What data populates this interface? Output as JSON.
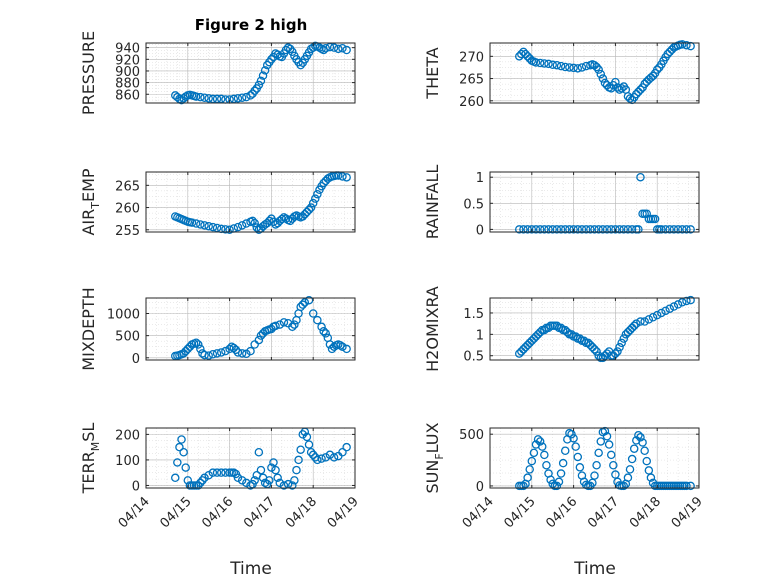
{
  "figure": {
    "title": "Figure 2 high",
    "x_axis_label": "Time"
  },
  "chart_data": [
    {
      "type": "scatter",
      "ylabel": "PRESSURE",
      "xlim": [
        0,
        5
      ],
      "xticks": [
        0,
        1,
        2,
        3,
        4,
        5
      ],
      "ylim": [
        845,
        948
      ],
      "yticks": [
        860,
        880,
        900,
        920,
        940
      ],
      "marker_color": "#0072BD",
      "grid": true,
      "x": [
        0.7,
        0.75,
        0.8,
        0.85,
        0.9,
        0.95,
        1.0,
        1.05,
        1.1,
        1.15,
        1.2,
        1.3,
        1.4,
        1.5,
        1.6,
        1.7,
        1.8,
        1.9,
        2.0,
        2.1,
        2.2,
        2.3,
        2.4,
        2.5,
        2.55,
        2.6,
        2.65,
        2.7,
        2.75,
        2.8,
        2.85,
        2.9,
        2.95,
        3.0,
        3.05,
        3.1,
        3.15,
        3.2,
        3.25,
        3.3,
        3.35,
        3.4,
        3.45,
        3.5,
        3.55,
        3.6,
        3.65,
        3.7,
        3.75,
        3.8,
        3.85,
        3.9,
        3.95,
        4.0,
        4.05,
        4.1,
        4.15,
        4.2,
        4.25,
        4.3,
        4.4,
        4.5,
        4.6,
        4.7,
        4.8
      ],
      "y": [
        858,
        855,
        852,
        850,
        853,
        856,
        858,
        859,
        858,
        857,
        856,
        855,
        854,
        853,
        852,
        852,
        852,
        851,
        851,
        852,
        853,
        854,
        855,
        858,
        861,
        866,
        870,
        876,
        883,
        892,
        901,
        910,
        915,
        920,
        924,
        930,
        928,
        925,
        924,
        930,
        936,
        940,
        938,
        933,
        926,
        920,
        915,
        910,
        914,
        920,
        926,
        932,
        938,
        940,
        943,
        942,
        940,
        938,
        936,
        939,
        941,
        940,
        938,
        939,
        936
      ]
    },
    {
      "type": "scatter",
      "ylabel": "THETA",
      "xlim": [
        0,
        5
      ],
      "xticks": [
        0,
        1,
        2,
        3,
        4,
        5
      ],
      "ylim": [
        259.5,
        273
      ],
      "yticks": [
        260,
        265,
        270
      ],
      "marker_color": "#0072BD",
      "grid": true,
      "x": [
        0.7,
        0.75,
        0.8,
        0.85,
        0.9,
        0.95,
        1.0,
        1.05,
        1.1,
        1.2,
        1.3,
        1.4,
        1.5,
        1.6,
        1.7,
        1.8,
        1.9,
        2.0,
        2.1,
        2.2,
        2.3,
        2.4,
        2.45,
        2.5,
        2.55,
        2.6,
        2.65,
        2.7,
        2.75,
        2.8,
        2.85,
        2.9,
        2.95,
        3.0,
        3.05,
        3.1,
        3.15,
        3.2,
        3.25,
        3.3,
        3.35,
        3.4,
        3.45,
        3.5,
        3.55,
        3.6,
        3.65,
        3.7,
        3.75,
        3.8,
        3.85,
        3.9,
        3.95,
        4.0,
        4.05,
        4.1,
        4.15,
        4.2,
        4.25,
        4.3,
        4.35,
        4.4,
        4.45,
        4.5,
        4.55,
        4.6,
        4.7,
        4.8
      ],
      "y": [
        270,
        270.5,
        271,
        270.5,
        270,
        269.5,
        269,
        268.8,
        268.6,
        268.5,
        268.4,
        268.3,
        268.1,
        268,
        267.8,
        267.6,
        267.5,
        267.4,
        267.3,
        267.5,
        267.8,
        268,
        268.2,
        268,
        267.6,
        267,
        266,
        265,
        264,
        263.5,
        263,
        262.8,
        263.5,
        264.2,
        263,
        262.5,
        262.8,
        263.2,
        262.5,
        261,
        260.5,
        260.2,
        260.8,
        261.5,
        262,
        262.5,
        263,
        263.8,
        264.3,
        264.8,
        265.2,
        265.6,
        266.2,
        267,
        267.5,
        268.2,
        269,
        269.8,
        270.5,
        271,
        271.5,
        272,
        272.2,
        272.4,
        272.6,
        272.7,
        272.5,
        272.3
      ]
    },
    {
      "type": "scatter",
      "ylabel": "AIR_TEMP",
      "xlim": [
        0,
        5
      ],
      "xticks": [
        0,
        1,
        2,
        3,
        4,
        5
      ],
      "ylim": [
        254.5,
        268
      ],
      "yticks": [
        255,
        260,
        265
      ],
      "marker_color": "#0072BD",
      "grid": true,
      "x": [
        0.7,
        0.75,
        0.8,
        0.85,
        0.9,
        0.95,
        1.0,
        1.05,
        1.1,
        1.2,
        1.3,
        1.4,
        1.5,
        1.6,
        1.7,
        1.8,
        1.9,
        2.0,
        2.1,
        2.2,
        2.3,
        2.4,
        2.5,
        2.55,
        2.6,
        2.65,
        2.7,
        2.75,
        2.8,
        2.85,
        2.9,
        2.95,
        3.0,
        3.05,
        3.1,
        3.15,
        3.2,
        3.25,
        3.3,
        3.35,
        3.4,
        3.45,
        3.5,
        3.55,
        3.6,
        3.65,
        3.7,
        3.75,
        3.8,
        3.85,
        3.9,
        3.95,
        4.0,
        4.05,
        4.1,
        4.15,
        4.2,
        4.25,
        4.3,
        4.35,
        4.4,
        4.45,
        4.5,
        4.55,
        4.6,
        4.7,
        4.8
      ],
      "y": [
        258,
        257.8,
        257.6,
        257.4,
        257.2,
        257,
        256.8,
        256.7,
        256.6,
        256.4,
        256.2,
        256,
        255.8,
        255.6,
        255.4,
        255.2,
        255.1,
        255,
        255.3,
        255.6,
        256,
        256.4,
        256.8,
        257,
        256.5,
        255.5,
        255,
        255.3,
        255.8,
        256.2,
        256.5,
        257,
        257.5,
        256.8,
        256.2,
        256.5,
        257,
        257.4,
        257.8,
        257.5,
        257.2,
        257,
        257.5,
        258,
        258.2,
        258,
        257.8,
        258,
        258.5,
        259,
        259.5,
        260,
        261,
        262,
        263,
        264,
        264.8,
        265.5,
        266,
        266.5,
        266.8,
        267,
        267.1,
        267.2,
        267.2,
        267,
        266.8
      ]
    },
    {
      "type": "scatter",
      "ylabel": "RAINFALL",
      "xlim": [
        0,
        5
      ],
      "xticks": [
        0,
        1,
        2,
        3,
        4,
        5
      ],
      "ylim": [
        -0.05,
        1.1
      ],
      "yticks": [
        0,
        0.5,
        1
      ],
      "marker_color": "#0072BD",
      "grid": true,
      "x": [
        0.7,
        0.8,
        0.9,
        1.0,
        1.1,
        1.2,
        1.3,
        1.4,
        1.5,
        1.6,
        1.7,
        1.8,
        1.9,
        2.0,
        2.1,
        2.2,
        2.3,
        2.4,
        2.5,
        2.6,
        2.7,
        2.8,
        2.9,
        3.0,
        3.1,
        3.2,
        3.3,
        3.4,
        3.5,
        3.55,
        3.6,
        3.65,
        3.7,
        3.75,
        3.8,
        3.85,
        3.9,
        3.95,
        4.0,
        4.05,
        4.1,
        4.2,
        4.3,
        4.4,
        4.5,
        4.6,
        4.7,
        4.8
      ],
      "y": [
        0,
        0,
        0,
        0,
        0,
        0,
        0,
        0,
        0,
        0,
        0,
        0,
        0,
        0,
        0,
        0,
        0,
        0,
        0,
        0,
        0,
        0,
        0,
        0,
        0,
        0,
        0,
        0,
        0,
        0,
        1.0,
        0.3,
        0.3,
        0.3,
        0.2,
        0.2,
        0.2,
        0.2,
        0,
        0,
        0,
        0,
        0,
        0,
        0,
        0,
        0,
        0
      ]
    },
    {
      "type": "scatter",
      "ylabel": "MIXDEPTH",
      "xlim": [
        0,
        5
      ],
      "xticks": [
        0,
        1,
        2,
        3,
        4,
        5
      ],
      "ylim": [
        -50,
        1350
      ],
      "yticks": [
        0,
        500,
        1000
      ],
      "marker_color": "#0072BD",
      "grid": true,
      "x": [
        0.7,
        0.75,
        0.8,
        0.85,
        0.9,
        0.95,
        1.0,
        1.05,
        1.1,
        1.15,
        1.2,
        1.25,
        1.3,
        1.35,
        1.4,
        1.5,
        1.6,
        1.7,
        1.8,
        1.9,
        2.0,
        2.05,
        2.1,
        2.15,
        2.2,
        2.3,
        2.4,
        2.5,
        2.6,
        2.7,
        2.75,
        2.8,
        2.85,
        2.9,
        2.95,
        3.0,
        3.05,
        3.1,
        3.2,
        3.3,
        3.4,
        3.5,
        3.55,
        3.6,
        3.65,
        3.7,
        3.75,
        3.8,
        3.9,
        4.0,
        4.1,
        4.2,
        4.25,
        4.3,
        4.35,
        4.4,
        4.45,
        4.5,
        4.55,
        4.6,
        4.65,
        4.7,
        4.8
      ],
      "y": [
        40,
        50,
        60,
        80,
        100,
        150,
        200,
        250,
        300,
        320,
        340,
        300,
        200,
        100,
        60,
        50,
        80,
        100,
        120,
        150,
        200,
        250,
        220,
        180,
        120,
        100,
        90,
        150,
        300,
        400,
        500,
        550,
        600,
        620,
        640,
        650,
        700,
        720,
        750,
        800,
        780,
        700,
        750,
        850,
        1000,
        1150,
        1200,
        1250,
        1300,
        1000,
        850,
        700,
        600,
        550,
        450,
        300,
        200,
        250,
        280,
        300,
        280,
        250,
        200
      ]
    },
    {
      "type": "scatter",
      "ylabel": "H2OMIXRA",
      "xlim": [
        0,
        5
      ],
      "xticks": [
        0,
        1,
        2,
        3,
        4,
        5
      ],
      "ylim": [
        0.4,
        1.85
      ],
      "yticks": [
        0.5,
        1,
        1.5
      ],
      "marker_color": "#0072BD",
      "grid": true,
      "x": [
        0.7,
        0.75,
        0.8,
        0.85,
        0.9,
        0.95,
        1.0,
        1.05,
        1.1,
        1.15,
        1.2,
        1.25,
        1.3,
        1.35,
        1.4,
        1.45,
        1.5,
        1.55,
        1.6,
        1.65,
        1.7,
        1.75,
        1.8,
        1.85,
        1.9,
        1.95,
        2.0,
        2.05,
        2.1,
        2.15,
        2.2,
        2.25,
        2.3,
        2.35,
        2.4,
        2.45,
        2.5,
        2.55,
        2.6,
        2.65,
        2.7,
        2.75,
        2.8,
        2.85,
        2.9,
        2.95,
        3.0,
        3.05,
        3.1,
        3.15,
        3.2,
        3.25,
        3.3,
        3.35,
        3.4,
        3.45,
        3.5,
        3.6,
        3.7,
        3.8,
        3.9,
        4.0,
        4.1,
        4.2,
        4.3,
        4.4,
        4.5,
        4.6,
        4.7,
        4.8
      ],
      "y": [
        0.55,
        0.6,
        0.65,
        0.7,
        0.75,
        0.8,
        0.85,
        0.9,
        0.95,
        1.0,
        1.05,
        1.1,
        1.1,
        1.15,
        1.15,
        1.2,
        1.2,
        1.2,
        1.2,
        1.15,
        1.15,
        1.1,
        1.1,
        1.05,
        1.0,
        1.0,
        0.95,
        0.95,
        0.9,
        0.9,
        0.85,
        0.85,
        0.8,
        0.8,
        0.75,
        0.7,
        0.65,
        0.6,
        0.5,
        0.45,
        0.45,
        0.5,
        0.55,
        0.6,
        0.5,
        0.5,
        0.55,
        0.6,
        0.7,
        0.8,
        0.9,
        1.0,
        1.05,
        1.1,
        1.15,
        1.2,
        1.25,
        1.3,
        1.3,
        1.35,
        1.4,
        1.45,
        1.5,
        1.55,
        1.6,
        1.65,
        1.7,
        1.75,
        1.78,
        1.8
      ]
    },
    {
      "type": "scatter",
      "ylabel": "TERR_MSL",
      "xlim": [
        0,
        5
      ],
      "xticks": [
        0,
        1,
        2,
        3,
        4,
        5
      ],
      "ylim": [
        -10,
        225
      ],
      "yticks": [
        0,
        100,
        200
      ],
      "marker_color": "#0072BD",
      "grid": true,
      "x": [
        0.7,
        0.75,
        0.8,
        0.85,
        0.9,
        0.95,
        1.0,
        1.05,
        1.1,
        1.15,
        1.2,
        1.25,
        1.3,
        1.35,
        1.4,
        1.5,
        1.6,
        1.7,
        1.8,
        1.9,
        2.0,
        2.05,
        2.1,
        2.15,
        2.2,
        2.3,
        2.4,
        2.5,
        2.55,
        2.6,
        2.65,
        2.7,
        2.75,
        2.8,
        2.85,
        2.9,
        2.95,
        3.0,
        3.05,
        3.1,
        3.15,
        3.2,
        3.3,
        3.4,
        3.5,
        3.55,
        3.6,
        3.65,
        3.7,
        3.75,
        3.8,
        3.85,
        3.9,
        3.95,
        4.0,
        4.05,
        4.1,
        4.2,
        4.3,
        4.4,
        4.5,
        4.6,
        4.7,
        4.8
      ],
      "y": [
        30,
        90,
        150,
        180,
        130,
        70,
        20,
        0,
        0,
        0,
        0,
        0,
        10,
        20,
        30,
        40,
        50,
        50,
        50,
        50,
        50,
        50,
        50,
        45,
        30,
        20,
        10,
        0,
        5,
        20,
        40,
        130,
        60,
        30,
        10,
        5,
        20,
        70,
        90,
        60,
        30,
        10,
        0,
        5,
        0,
        20,
        60,
        100,
        140,
        200,
        210,
        190,
        160,
        130,
        120,
        110,
        100,
        105,
        110,
        120,
        110,
        115,
        130,
        150
      ]
    },
    {
      "type": "scatter",
      "ylabel": "SUN_FLUX",
      "xlim": [
        0,
        5
      ],
      "xticks": [
        0,
        1,
        2,
        3,
        4,
        5
      ],
      "ylim": [
        -20,
        560
      ],
      "yticks": [
        0,
        500
      ],
      "marker_color": "#0072BD",
      "grid": true,
      "x": [
        0.7,
        0.75,
        0.8,
        0.85,
        0.9,
        0.95,
        1.0,
        1.05,
        1.1,
        1.15,
        1.2,
        1.25,
        1.3,
        1.35,
        1.4,
        1.45,
        1.5,
        1.55,
        1.6,
        1.65,
        1.7,
        1.75,
        1.8,
        1.85,
        1.9,
        1.95,
        2.0,
        2.05,
        2.1,
        2.15,
        2.2,
        2.25,
        2.3,
        2.35,
        2.4,
        2.45,
        2.5,
        2.55,
        2.6,
        2.65,
        2.7,
        2.75,
        2.8,
        2.85,
        2.9,
        2.95,
        3.0,
        3.05,
        3.1,
        3.15,
        3.2,
        3.25,
        3.3,
        3.35,
        3.4,
        3.45,
        3.5,
        3.55,
        3.6,
        3.65,
        3.7,
        3.75,
        3.8,
        3.85,
        3.9,
        3.95,
        4.0,
        4.05,
        4.1,
        4.15,
        4.2,
        4.25,
        4.3,
        4.35,
        4.4,
        4.45,
        4.5,
        4.55,
        4.6,
        4.65,
        4.7,
        4.8
      ],
      "y": [
        0,
        0,
        0,
        20,
        80,
        160,
        240,
        320,
        400,
        450,
        430,
        380,
        300,
        200,
        120,
        60,
        20,
        0,
        0,
        40,
        120,
        220,
        340,
        450,
        510,
        500,
        460,
        380,
        280,
        180,
        100,
        40,
        10,
        0,
        0,
        30,
        100,
        200,
        320,
        430,
        520,
        530,
        480,
        400,
        300,
        200,
        110,
        40,
        5,
        0,
        0,
        20,
        80,
        160,
        260,
        360,
        440,
        490,
        470,
        420,
        340,
        240,
        150,
        80,
        30,
        0,
        0,
        0,
        0,
        0,
        0,
        0,
        0,
        0,
        0,
        0,
        0,
        0,
        0,
        0,
        0,
        0
      ]
    }
  ],
  "x_tick_labels": [
    "04/14",
    "04/15",
    "04/16",
    "04/17",
    "04/18",
    "04/19"
  ]
}
